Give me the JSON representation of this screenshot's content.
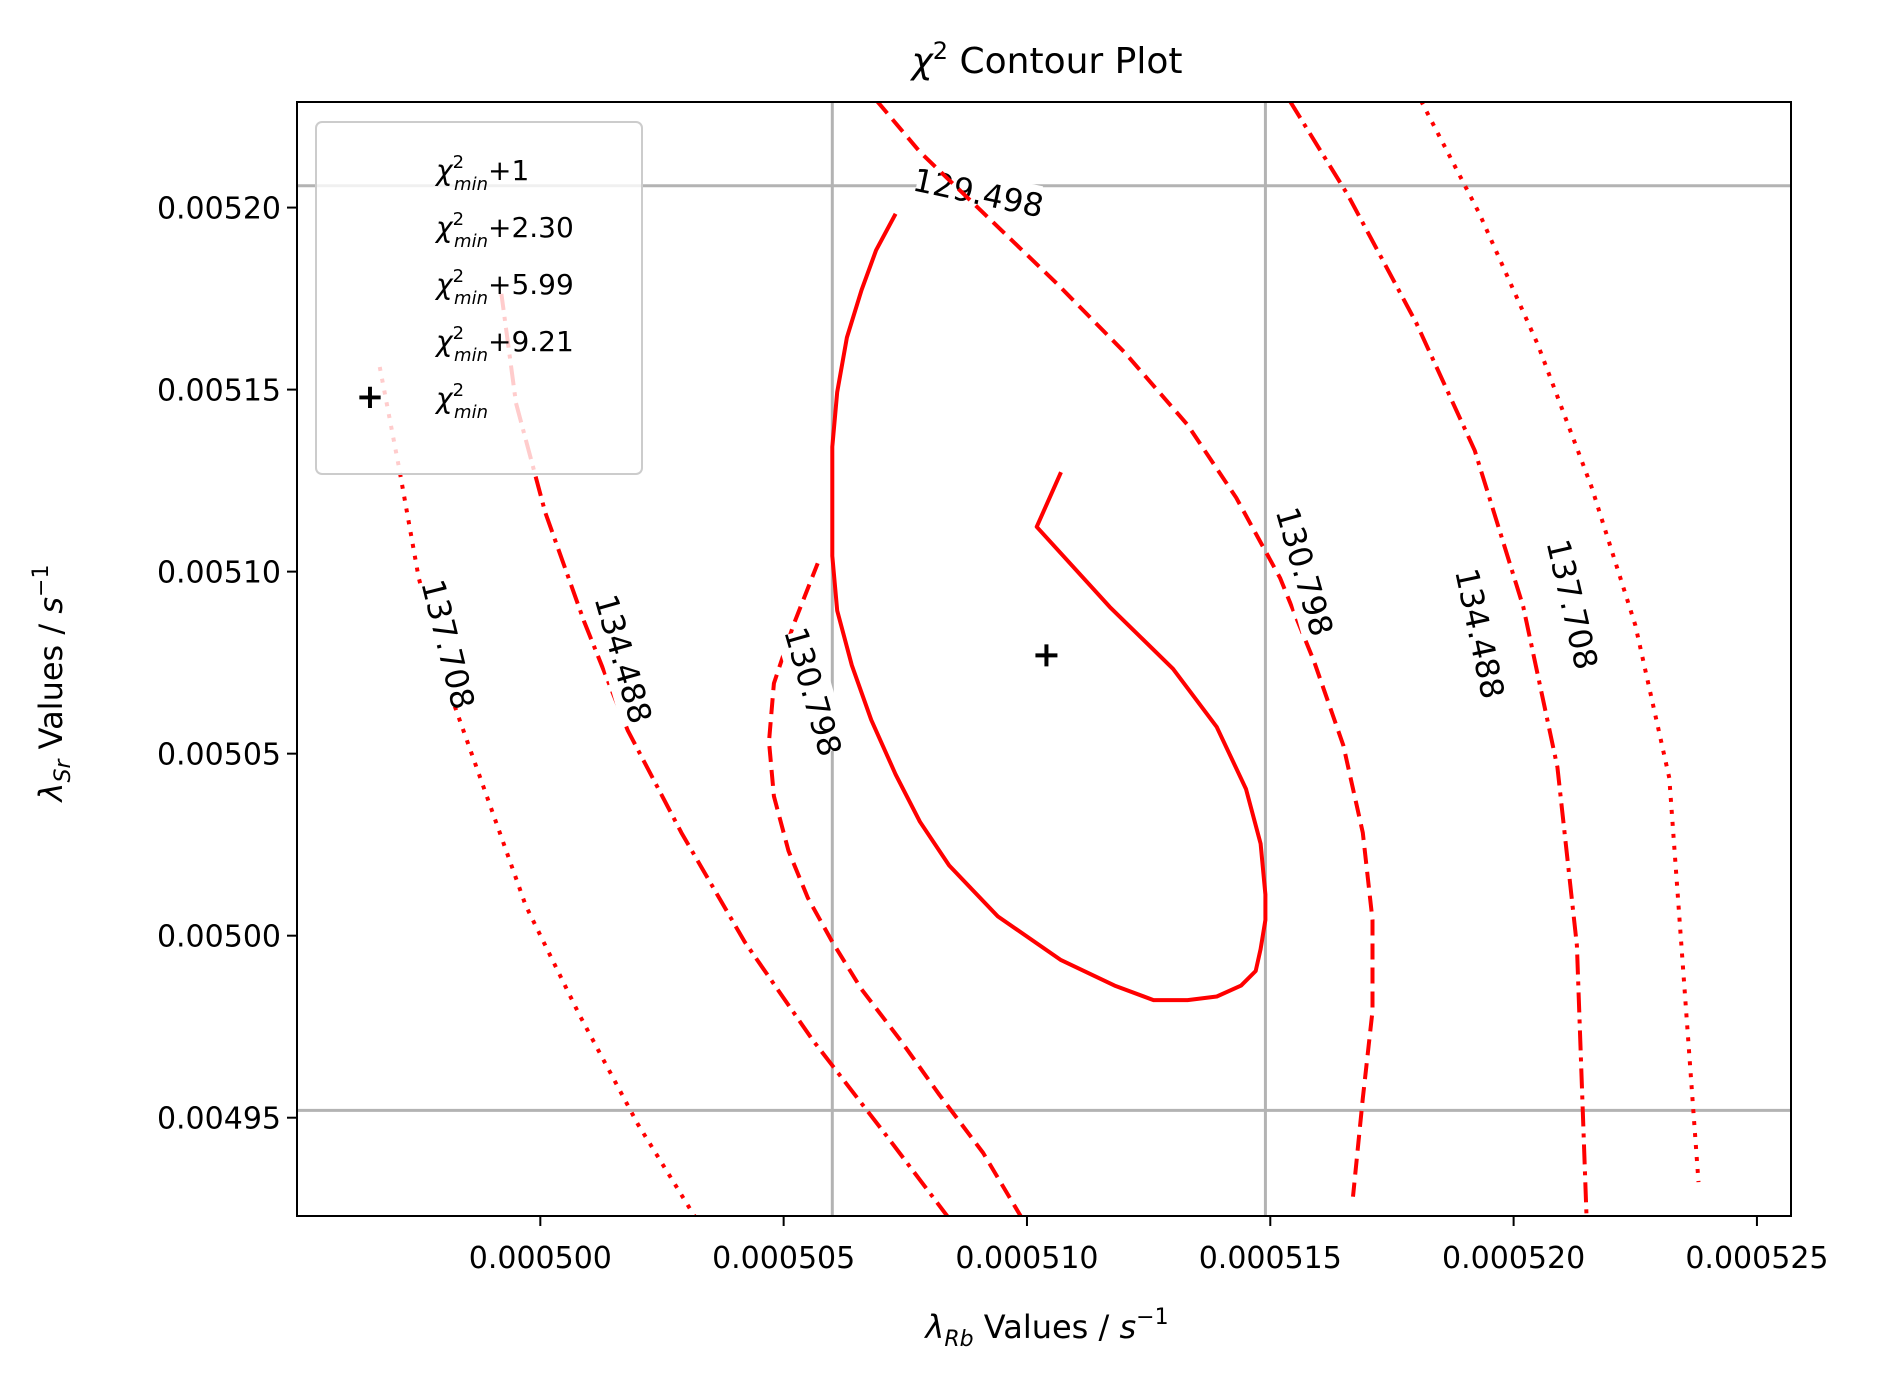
{
  "chart_data": {
    "type": "contour",
    "title": "χ² Contour Plot",
    "xlabel": "λ_Rb Values / s⁻¹",
    "ylabel": "λ_Sr Values / s⁻¹",
    "xlim": [
      0.000495,
      0.0005257
    ],
    "ylim": [
      0.004923,
      0.005229
    ],
    "xticks": [
      0.0005,
      0.000505,
      0.00051,
      0.000515,
      0.00052,
      0.000525
    ],
    "xtick_labels": [
      "0.000500",
      "0.000505",
      "0.000510",
      "0.000515",
      "0.000520",
      "0.000525"
    ],
    "yticks": [
      0.00495,
      0.005,
      0.00505,
      0.0051,
      0.00515,
      0.0052
    ],
    "ytick_labels": [
      "0.00495",
      "0.00500",
      "0.00505",
      "0.00510",
      "0.00515",
      "0.00520"
    ],
    "minimum": {
      "x": 0.0005104,
      "y": 0.005077,
      "label": "χ²_min"
    },
    "reference_lines": {
      "vertical": [
        0.000506,
        0.0005149
      ],
      "horizontal": [
        0.004952,
        0.005206
      ],
      "color": "#b3b3b3"
    },
    "contours": [
      {
        "name": "χ²_min+1",
        "level_label": "129.498",
        "style": "solid",
        "x": [
          0.0005073,
          0.0005069,
          0.0005066,
          0.0005063,
          0.0005061,
          0.000506,
          0.000506,
          0.000506,
          0.0005061,
          0.0005064,
          0.0005068,
          0.0005073,
          0.0005078,
          0.0005084,
          0.0005094,
          0.0005107,
          0.0005118,
          0.0005126,
          0.0005133,
          0.0005139,
          0.0005144,
          0.0005147,
          0.0005148,
          0.0005149,
          0.0005149,
          0.0005148,
          0.0005145,
          0.0005139,
          0.000513,
          0.0005117,
          0.0005102,
          0.0005107
        ],
        "y": [
          0.0051983,
          0.0051883,
          0.0051773,
          0.0051643,
          0.0051493,
          0.0051343,
          0.0051193,
          0.0051043,
          0.0050893,
          0.0050743,
          0.0050593,
          0.0050443,
          0.0050313,
          0.0050193,
          0.0050053,
          0.0049933,
          0.0049863,
          0.0049823,
          0.0049823,
          0.0049833,
          0.0049863,
          0.0049903,
          0.0049963,
          0.0050043,
          0.0050113,
          0.0050253,
          0.0050403,
          0.0050573,
          0.0050733,
          0.0050903,
          0.0051123,
          0.0051273
        ],
        "label_pos": [
          0.000509,
          0.005204
        ],
        "label_angle": 12
      },
      {
        "name": "χ²_min+2.30",
        "level_label": "130.798",
        "style": "dashed",
        "x": [
          0.0005099,
          0.0005091,
          0.0005082,
          0.0005074,
          0.0005066,
          0.000506,
          0.0005055,
          0.0005051,
          0.0005048,
          0.0005047,
          0.0005048,
          0.0005052,
          0.0005057
        ],
        "y": [
          0.0049223,
          0.0049403,
          0.0049563,
          0.0049713,
          0.0049853,
          0.0049983,
          0.0050103,
          0.0050233,
          0.0050383,
          0.0050533,
          0.0050693,
          0.0050853,
          0.0051023
        ],
        "x2": [
          0.0005066,
          0.0005078,
          0.0005092,
          0.0005106,
          0.000512,
          0.0005133,
          0.0005143,
          0.0005152,
          0.0005159,
          0.0005165,
          0.0005169,
          0.0005171,
          0.0005171,
          0.0005169,
          0.0005167
        ],
        "y2": [
          0.0052343,
          0.0052153,
          0.0051973,
          0.0051793,
          0.0051603,
          0.0051403,
          0.0051203,
          0.0050983,
          0.0050753,
          0.0050523,
          0.0050283,
          0.0050043,
          0.0049793,
          0.0049553,
          0.0049283
        ],
        "label_pos": [
          [
            0.0005056,
            0.005067
          ],
          [
            0.0005157,
            0.0051
          ]
        ],
        "label_angle": [
          74,
          74
        ]
      },
      {
        "name": "χ²_min+5.99",
        "level_label": "134.488",
        "style": "dashdot",
        "x": [
          0.0005084,
          0.0005071,
          0.0005056,
          0.0005042,
          0.0005029,
          0.0005018,
          0.0005009,
          0.0005001,
          0.0004995,
          0.0004992
        ],
        "y": [
          0.0049223,
          0.0049453,
          0.0049713,
          0.0049983,
          0.0050283,
          0.0050563,
          0.0050863,
          0.0051163,
          0.0051463,
          0.0051763
        ],
        "x2": [
          0.0005154,
          0.0005166,
          0.000518,
          0.0005192,
          0.0005202,
          0.0005209,
          0.0005213,
          0.0005215
        ],
        "y2": [
          0.0052293,
          0.0052033,
          0.0051683,
          0.0051333,
          0.0050903,
          0.0050463,
          0.0049973,
          0.0049223
        ],
        "label_pos": [
          [
            0.0005017,
            0.005076
          ],
          [
            0.0005193,
            0.005083
          ]
        ],
        "label_angle": [
          74,
          78
        ]
      },
      {
        "name": "χ²_min+9.21",
        "level_label": "137.708",
        "style": "dotted",
        "x": [
          0.0005032,
          0.000502,
          0.0005008,
          0.0004997,
          0.0004989,
          0.0004981,
          0.0004975,
          0.0004971,
          0.0004967
        ],
        "y": [
          0.0049223,
          0.0049483,
          0.0049783,
          0.0050083,
          0.0050383,
          0.0050683,
          0.0050983,
          0.0051283,
          0.0051563
        ],
        "x2": [
          0.0005181,
          0.0005193,
          0.0005205,
          0.0005216,
          0.0005225,
          0.0005232,
          0.0005238
        ],
        "y2": [
          0.0052293,
          0.0051983,
          0.0051623,
          0.0051233,
          0.0050853,
          0.0050433,
          0.0049323
        ],
        "label_pos": [
          [
            0.0004981,
            0.00508
          ],
          [
            0.0005212,
            0.005091
          ]
        ],
        "label_angle": [
          76,
          77
        ]
      }
    ],
    "legend": {
      "position": "upper left",
      "entries": [
        {
          "base": "χ",
          "sup": "2",
          "sub": "min",
          "suffix": "+1",
          "marker": ""
        },
        {
          "base": "χ",
          "sup": "2",
          "sub": "min",
          "suffix": "+2.30",
          "marker": ""
        },
        {
          "base": "χ",
          "sup": "2",
          "sub": "min",
          "suffix": "+5.99",
          "marker": ""
        },
        {
          "base": "χ",
          "sup": "2",
          "sub": "min",
          "suffix": "+9.21",
          "marker": ""
        },
        {
          "base": "χ",
          "sup": "2",
          "sub": "min",
          "suffix": "",
          "marker": "+"
        }
      ]
    },
    "line_color": "#ff0000",
    "grid": false
  }
}
